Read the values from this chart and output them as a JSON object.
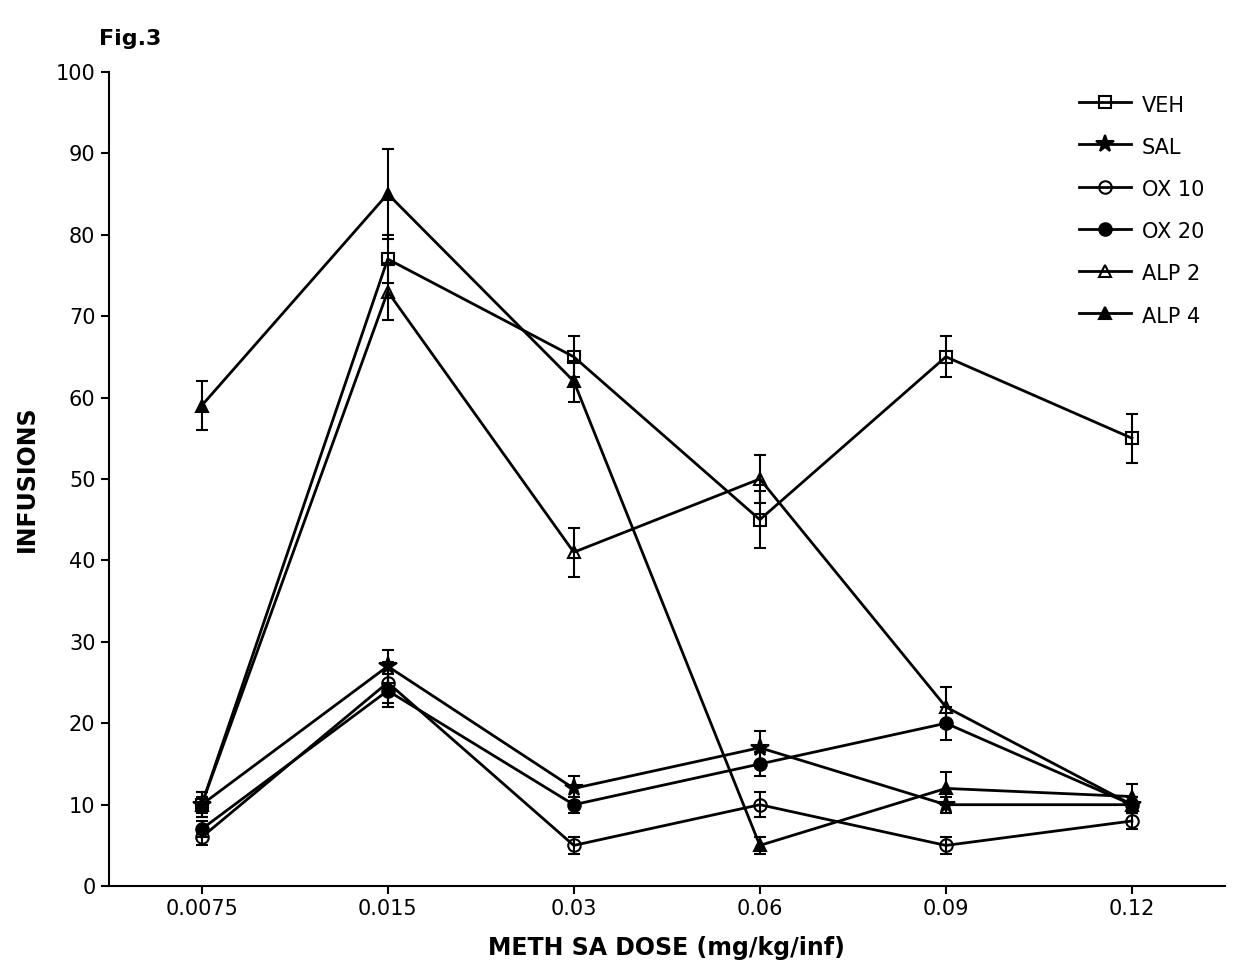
{
  "title": "Fig.3",
  "xlabel": "METH SA DOSE (mg/kg/inf)",
  "ylabel": "INFUSIONS",
  "x_values": [
    0.0075,
    0.015,
    0.03,
    0.06,
    0.09,
    0.12
  ],
  "x_labels": [
    "0.0075",
    "0.015",
    "0.03",
    "0.06",
    "0.09",
    "0.12"
  ],
  "ylim": [
    0,
    100
  ],
  "yticks": [
    0,
    10,
    20,
    30,
    40,
    50,
    60,
    70,
    80,
    90,
    100
  ],
  "series": {
    "VEH": {
      "y": [
        10,
        77,
        65,
        45,
        65,
        55
      ],
      "yerr": [
        1.5,
        3.0,
        2.5,
        3.5,
        2.5,
        3.0
      ],
      "marker": "s",
      "linestyle": "-",
      "fillstyle": "none",
      "markersize": 9
    },
    "SAL": {
      "y": [
        10,
        27,
        12,
        17,
        10,
        10
      ],
      "yerr": [
        1.0,
        2.0,
        1.5,
        2.0,
        1.0,
        1.0
      ],
      "marker": "*",
      "linestyle": "-",
      "fillstyle": "full",
      "markersize": 13
    },
    "OX10": {
      "y": [
        6,
        25,
        5,
        10,
        5,
        8
      ],
      "yerr": [
        1.0,
        2.5,
        1.0,
        1.5,
        1.0,
        1.0
      ],
      "marker": "o",
      "linestyle": "-",
      "fillstyle": "none",
      "markersize": 9
    },
    "OX20": {
      "y": [
        7,
        24,
        10,
        15,
        20,
        10
      ],
      "yerr": [
        1.0,
        2.0,
        1.0,
        1.5,
        2.0,
        1.0
      ],
      "marker": "o",
      "linestyle": "-",
      "fillstyle": "full",
      "markersize": 9
    },
    "ALP2": {
      "y": [
        10,
        73,
        41,
        50,
        22,
        10
      ],
      "yerr": [
        1.5,
        3.5,
        3.0,
        3.0,
        2.5,
        1.0
      ],
      "marker": "^",
      "linestyle": "-",
      "fillstyle": "none",
      "markersize": 9
    },
    "ALP4": {
      "y": [
        59,
        85,
        62,
        5,
        12,
        11
      ],
      "yerr": [
        3.0,
        5.5,
        2.5,
        1.0,
        2.0,
        1.5
      ],
      "marker": "^",
      "linestyle": "-",
      "fillstyle": "full",
      "markersize": 9
    }
  },
  "legend_labels": [
    "VEH",
    "SAL",
    "OX 10",
    "OX 20",
    "ALP 2",
    "ALP 4"
  ],
  "legend_keys": [
    "VEH",
    "SAL",
    "OX10",
    "OX20",
    "ALP2",
    "ALP4"
  ],
  "background_color": "#ffffff",
  "linewidth": 2.0,
  "color": "#000000"
}
